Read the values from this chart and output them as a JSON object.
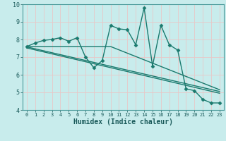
{
  "xlabel": "Humidex (Indice chaleur)",
  "x": [
    0,
    1,
    2,
    3,
    4,
    5,
    6,
    7,
    8,
    9,
    10,
    11,
    12,
    13,
    14,
    15,
    16,
    17,
    18,
    19,
    20,
    21,
    22,
    23
  ],
  "line1": [
    7.6,
    7.8,
    7.95,
    8.0,
    8.1,
    7.9,
    8.1,
    7.0,
    6.4,
    6.8,
    8.8,
    8.6,
    8.55,
    7.7,
    9.8,
    6.5,
    8.8,
    7.7,
    7.4,
    5.2,
    5.1,
    4.6,
    4.4,
    4.4
  ],
  "trend1_x": [
    0,
    10,
    23
  ],
  "trend1_y": [
    7.6,
    7.6,
    5.15
  ],
  "trend2_x": [
    0,
    23
  ],
  "trend2_y": [
    7.58,
    5.05
  ],
  "trend3_x": [
    0,
    23
  ],
  "trend3_y": [
    7.52,
    4.95
  ],
  "ylim": [
    4,
    10
  ],
  "xlim": [
    -0.5,
    23.5
  ],
  "yticks": [
    4,
    5,
    6,
    7,
    8,
    9,
    10
  ],
  "xticks": [
    0,
    1,
    2,
    3,
    4,
    5,
    6,
    7,
    8,
    9,
    10,
    11,
    12,
    13,
    14,
    15,
    16,
    17,
    18,
    19,
    20,
    21,
    22,
    23
  ],
  "line_color": "#1a7a6e",
  "bg_color": "#c8ecec",
  "grid_color": "#b0d8d8",
  "marker": "D",
  "markersize": 2.5,
  "linewidth": 1.0
}
